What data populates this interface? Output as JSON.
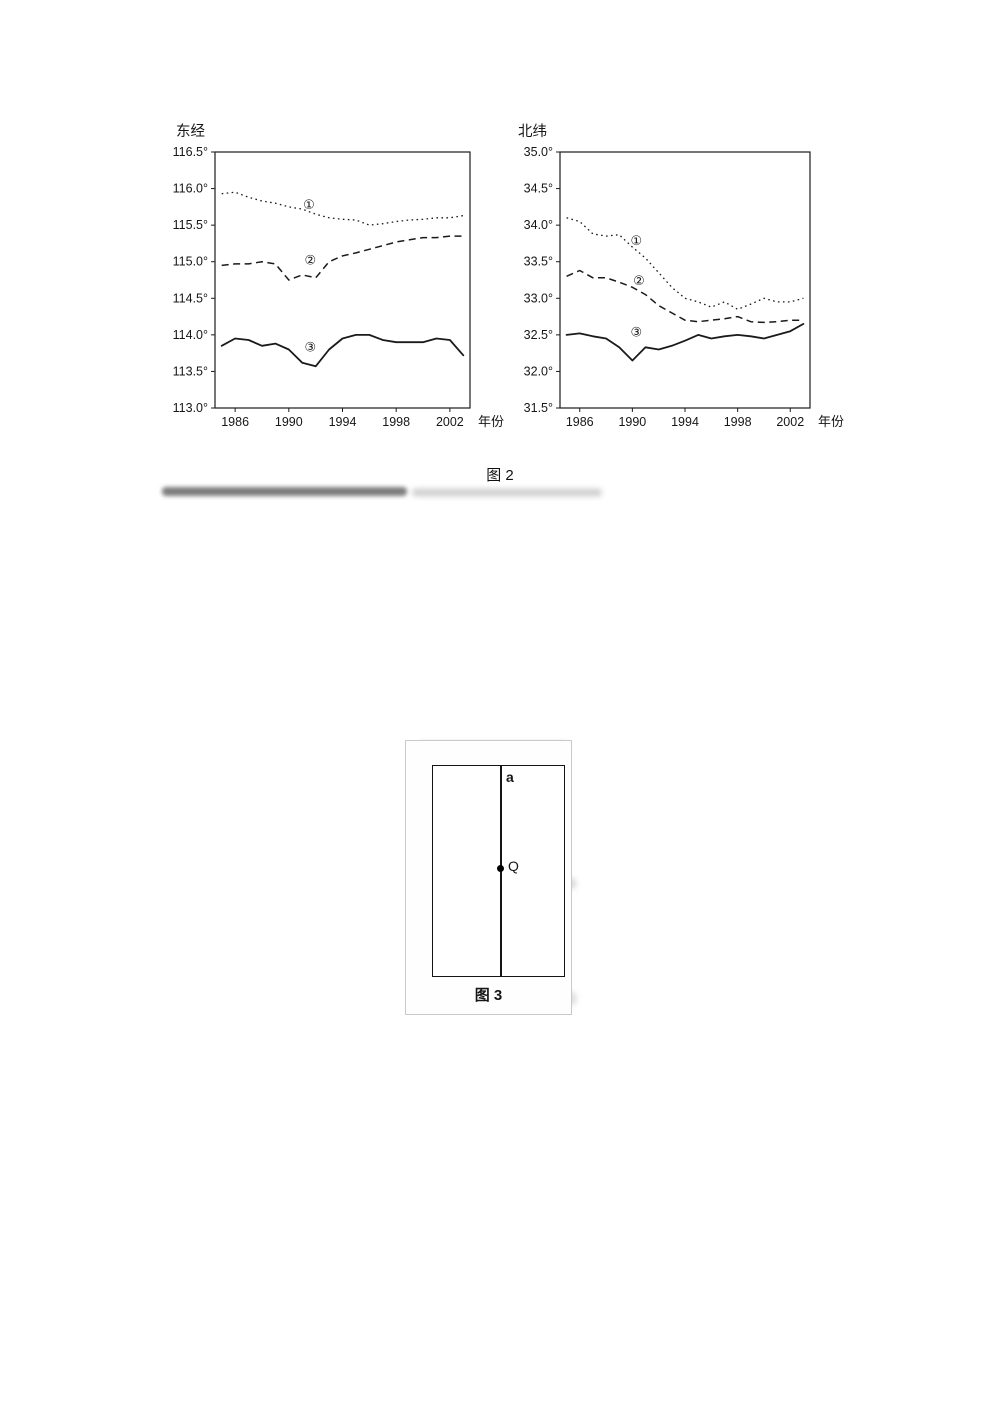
{
  "figure2": {
    "caption": "图 2"
  },
  "figure3": {
    "caption": "图 3",
    "line_label": "a",
    "point_label": "Q"
  },
  "chart_data": [
    {
      "type": "line",
      "title": "东经",
      "xlabel": "年份",
      "x_ticks": [
        1986,
        1990,
        1994,
        1998,
        2002
      ],
      "xlim": [
        1984.5,
        2003.5
      ],
      "y_ticks": [
        "116.5°",
        "116.0°",
        "115.5°",
        "115.0°",
        "114.5°",
        "114.0°",
        "113.5°",
        "113.0°"
      ],
      "ylim": [
        113.0,
        116.5
      ],
      "years": [
        1985,
        1986,
        1987,
        1988,
        1989,
        1990,
        1991,
        1992,
        1993,
        1994,
        1995,
        1996,
        1997,
        1998,
        1999,
        2000,
        2001,
        2002,
        2003
      ],
      "series": [
        {
          "name": "①",
          "style": "dotted",
          "label_x": 1991.5,
          "label_y": 115.72,
          "values": [
            115.93,
            115.95,
            115.88,
            115.83,
            115.8,
            115.75,
            115.72,
            115.65,
            115.6,
            115.58,
            115.57,
            115.5,
            115.52,
            115.55,
            115.57,
            115.58,
            115.6,
            115.6,
            115.63
          ]
        },
        {
          "name": "②",
          "style": "dashed",
          "label_x": 1991.6,
          "label_y": 114.96,
          "values": [
            114.95,
            114.97,
            114.97,
            115.0,
            114.97,
            114.75,
            114.82,
            114.78,
            115.0,
            115.08,
            115.12,
            115.17,
            115.22,
            115.27,
            115.3,
            115.33,
            115.33,
            115.35,
            115.35
          ]
        },
        {
          "name": "③",
          "style": "solid",
          "label_x": 1991.6,
          "label_y": 113.77,
          "values": [
            113.85,
            113.95,
            113.93,
            113.85,
            113.88,
            113.8,
            113.62,
            113.57,
            113.8,
            113.95,
            114.0,
            114.0,
            113.93,
            113.9,
            113.9,
            113.9,
            113.95,
            113.93,
            113.72
          ]
        }
      ]
    },
    {
      "type": "line",
      "title": "北纬",
      "xlabel": "年份",
      "x_ticks": [
        1986,
        1990,
        1994,
        1998,
        2002
      ],
      "xlim": [
        1984.5,
        2003.5
      ],
      "y_ticks": [
        "35.0°",
        "34.5°",
        "34.0°",
        "33.5°",
        "33.0°",
        "32.5°",
        "32.0°",
        "31.5°"
      ],
      "ylim": [
        31.5,
        35.0
      ],
      "years": [
        1985,
        1986,
        1987,
        1988,
        1989,
        1990,
        1991,
        1992,
        1993,
        1994,
        1995,
        1996,
        1997,
        1998,
        1999,
        2000,
        2001,
        2002,
        2003
      ],
      "series": [
        {
          "name": "①",
          "style": "dotted",
          "label_x": 1990.3,
          "label_y": 33.73,
          "values": [
            34.1,
            34.05,
            33.88,
            33.85,
            33.87,
            33.7,
            33.55,
            33.35,
            33.15,
            33.0,
            32.95,
            32.88,
            32.95,
            32.85,
            32.92,
            33.0,
            32.95,
            32.95,
            33.0
          ]
        },
        {
          "name": "②",
          "style": "dashed",
          "label_x": 1990.5,
          "label_y": 33.18,
          "values": [
            33.3,
            33.38,
            33.28,
            33.28,
            33.22,
            33.15,
            33.05,
            32.9,
            32.8,
            32.7,
            32.68,
            32.7,
            32.72,
            32.75,
            32.68,
            32.67,
            32.68,
            32.7,
            32.7
          ]
        },
        {
          "name": "③",
          "style": "solid",
          "label_x": 1990.3,
          "label_y": 32.48,
          "values": [
            32.5,
            32.52,
            32.48,
            32.45,
            32.33,
            32.15,
            32.33,
            32.3,
            32.35,
            32.42,
            32.5,
            32.45,
            32.48,
            32.5,
            32.48,
            32.45,
            32.5,
            32.55,
            32.65
          ]
        }
      ]
    }
  ]
}
